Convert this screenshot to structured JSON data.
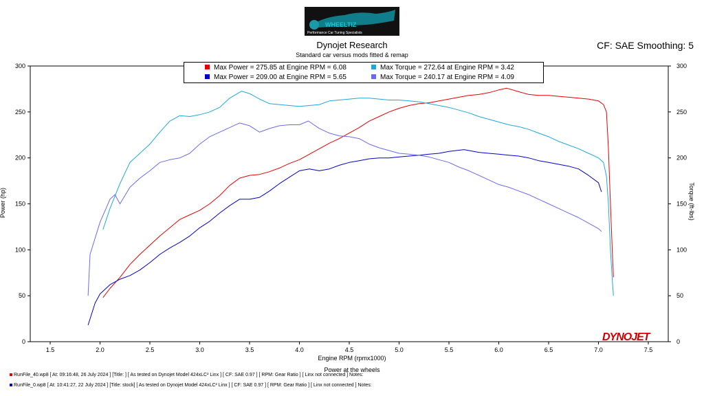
{
  "header": {
    "logo_text": "WHEELTIZ",
    "logo_tagline": "Performance Car Tuning Specialists",
    "title": "Dynojet Research",
    "subtitle": "Standard car versus mods fitted & remap",
    "cf_label": "CF: SAE Smoothing: 5"
  },
  "legend": [
    {
      "text": "Max Power = 275.85 at Engine RPM = 6.08",
      "color": "#e60000"
    },
    {
      "text": "Max Torque = 272.64 at Engine RPM = 3.42",
      "color": "#1ca8dc"
    },
    {
      "text": "Max Power = 209.00 at Engine RPM = 5.65",
      "color": "#0000cc"
    },
    {
      "text": "Max Torque = 240.17 at Engine RPM = 4.09",
      "color": "#6a6af0"
    }
  ],
  "footer": [
    {
      "text": "RunFile_40.wp8 [ At: 09:16:48, 26 July 2024 ] [Title: ] [ As tested on Dynojet Model 424xLC² Linx ] [ CF: SAE 0.97 ] [ RPM: Gear Ratio ] [ Linx not connected ] Notes:",
      "color": "#e60000"
    },
    {
      "text": "RunFile_0.wp8 [ At: 10:41:27, 22 July 2024 ] [Title: stock] [ As tested on Dynojet Model 424xLC² Linx ] [ CF: SAE 0.97 ] [ RPM: Gear Ratio ] [ Linx not connected ] Notes:",
      "color": "#0000cc"
    }
  ],
  "brand": "DYNOJET",
  "chart_data": {
    "type": "line",
    "title": "Dynojet Research",
    "subtitle": "Standard car versus mods fitted & remap",
    "xlabel": "Engine RPM (rpmx1000)",
    "x_caption": "Power at the wheels",
    "ylabel_left": "Power (hp)",
    "ylabel_right": "Torque (ft-lbs)",
    "xlim": [
      1.3,
      7.7
    ],
    "ylim": [
      0,
      300
    ],
    "x_ticks": [
      "1.5",
      "2.0",
      "2.5",
      "3.0",
      "3.5",
      "4.0",
      "4.5",
      "5.0",
      "5.5",
      "6.0",
      "6.5",
      "7.0",
      "7.5"
    ],
    "y_ticks": [
      "0",
      "50",
      "100",
      "150",
      "200",
      "250",
      "300"
    ],
    "grid": false,
    "legend_position": "top-center",
    "series": [
      {
        "name": "Max Power = 275.85 at Engine RPM = 6.08",
        "color": "#e60000",
        "x": [
          2.03,
          2.1,
          2.2,
          2.3,
          2.4,
          2.5,
          2.6,
          2.7,
          2.8,
          2.9,
          3.0,
          3.1,
          3.2,
          3.3,
          3.4,
          3.5,
          3.6,
          3.7,
          3.8,
          3.9,
          4.0,
          4.1,
          4.2,
          4.3,
          4.4,
          4.5,
          4.6,
          4.7,
          4.8,
          4.9,
          5.0,
          5.1,
          5.2,
          5.3,
          5.4,
          5.5,
          5.6,
          5.7,
          5.8,
          5.9,
          6.0,
          6.08,
          6.2,
          6.3,
          6.4,
          6.5,
          6.6,
          6.7,
          6.8,
          6.9,
          7.0,
          7.05,
          7.08,
          7.1,
          7.12,
          7.14,
          7.15
        ],
        "y": [
          48,
          58,
          70,
          84,
          95,
          105,
          115,
          124,
          133,
          138,
          143,
          150,
          159,
          170,
          178,
          181,
          182,
          185,
          189,
          194,
          198,
          204,
          210,
          216,
          221,
          227,
          233,
          240,
          245,
          250,
          254,
          257,
          259,
          260,
          262,
          264,
          266,
          268,
          269,
          271,
          274,
          275.85,
          272,
          269,
          268,
          268,
          267,
          266,
          265,
          264,
          262,
          258,
          250,
          210,
          150,
          95,
          70
        ]
      },
      {
        "name": "Max Torque = 272.64 at Engine RPM = 3.42",
        "color": "#1ca8dc",
        "x": [
          2.03,
          2.1,
          2.2,
          2.3,
          2.4,
          2.5,
          2.6,
          2.7,
          2.8,
          2.9,
          3.0,
          3.1,
          3.2,
          3.3,
          3.42,
          3.5,
          3.6,
          3.7,
          3.8,
          3.9,
          4.0,
          4.1,
          4.2,
          4.3,
          4.4,
          4.5,
          4.6,
          4.7,
          4.8,
          4.9,
          5.0,
          5.1,
          5.2,
          5.3,
          5.4,
          5.5,
          5.6,
          5.7,
          5.8,
          5.9,
          6.0,
          6.1,
          6.2,
          6.3,
          6.4,
          6.5,
          6.6,
          6.7,
          6.8,
          6.9,
          7.0,
          7.05,
          7.08,
          7.1,
          7.12,
          7.14,
          7.15
        ],
        "y": [
          122,
          145,
          172,
          195,
          205,
          215,
          228,
          240,
          246,
          245,
          247,
          250,
          255,
          265,
          272.64,
          270,
          264,
          259,
          258,
          257,
          256,
          257,
          258,
          262,
          263,
          264,
          265,
          265,
          264,
          263,
          263,
          262,
          261,
          259,
          257,
          255,
          252,
          249,
          245,
          242,
          239,
          236,
          234,
          231,
          227,
          223,
          218,
          214,
          210,
          205,
          200,
          195,
          180,
          150,
          100,
          65,
          50
        ]
      },
      {
        "name": "Max Power = 209.00 at Engine RPM = 5.65",
        "color": "#0000cc",
        "x": [
          1.88,
          1.95,
          2.0,
          2.1,
          2.2,
          2.3,
          2.4,
          2.5,
          2.6,
          2.7,
          2.8,
          2.9,
          3.0,
          3.1,
          3.2,
          3.3,
          3.4,
          3.5,
          3.6,
          3.7,
          3.8,
          3.9,
          4.0,
          4.1,
          4.2,
          4.3,
          4.4,
          4.5,
          4.6,
          4.7,
          4.8,
          4.9,
          5.0,
          5.1,
          5.2,
          5.3,
          5.4,
          5.5,
          5.65,
          5.8,
          5.9,
          6.0,
          6.1,
          6.2,
          6.3,
          6.4,
          6.5,
          6.6,
          6.7,
          6.8,
          6.9,
          7.0,
          7.03
        ],
        "y": [
          18,
          42,
          52,
          62,
          68,
          72,
          78,
          86,
          95,
          102,
          108,
          115,
          124,
          131,
          140,
          148,
          155,
          155,
          157,
          164,
          172,
          179,
          186,
          188,
          186,
          188,
          192,
          195,
          197,
          199,
          200,
          200,
          201,
          202,
          203,
          204,
          205,
          207,
          209,
          206,
          205,
          204,
          203,
          202,
          200,
          197,
          195,
          193,
          191,
          188,
          181,
          173,
          163
        ]
      },
      {
        "name": "Max Torque = 240.17 at Engine RPM = 4.09",
        "color": "#6a6af0",
        "x": [
          1.88,
          1.9,
          2.0,
          2.1,
          2.15,
          2.2,
          2.3,
          2.4,
          2.5,
          2.6,
          2.7,
          2.8,
          2.9,
          3.0,
          3.1,
          3.2,
          3.3,
          3.4,
          3.5,
          3.6,
          3.7,
          3.8,
          3.9,
          4.0,
          4.09,
          4.2,
          4.3,
          4.4,
          4.5,
          4.6,
          4.7,
          4.8,
          4.9,
          5.0,
          5.1,
          5.2,
          5.3,
          5.4,
          5.5,
          5.6,
          5.7,
          5.8,
          5.9,
          6.0,
          6.1,
          6.2,
          6.3,
          6.4,
          6.5,
          6.6,
          6.7,
          6.8,
          6.9,
          7.0,
          7.03
        ],
        "y": [
          50,
          95,
          130,
          155,
          160,
          150,
          168,
          178,
          186,
          195,
          198,
          200,
          205,
          215,
          223,
          228,
          233,
          238,
          235,
          228,
          232,
          235,
          236,
          236,
          240.17,
          232,
          227,
          224,
          223,
          221,
          215,
          211,
          208,
          205,
          204,
          203,
          201,
          198,
          195,
          190,
          186,
          181,
          176,
          171,
          168,
          164,
          160,
          155,
          150,
          145,
          140,
          135,
          129,
          123,
          120
        ]
      }
    ]
  }
}
